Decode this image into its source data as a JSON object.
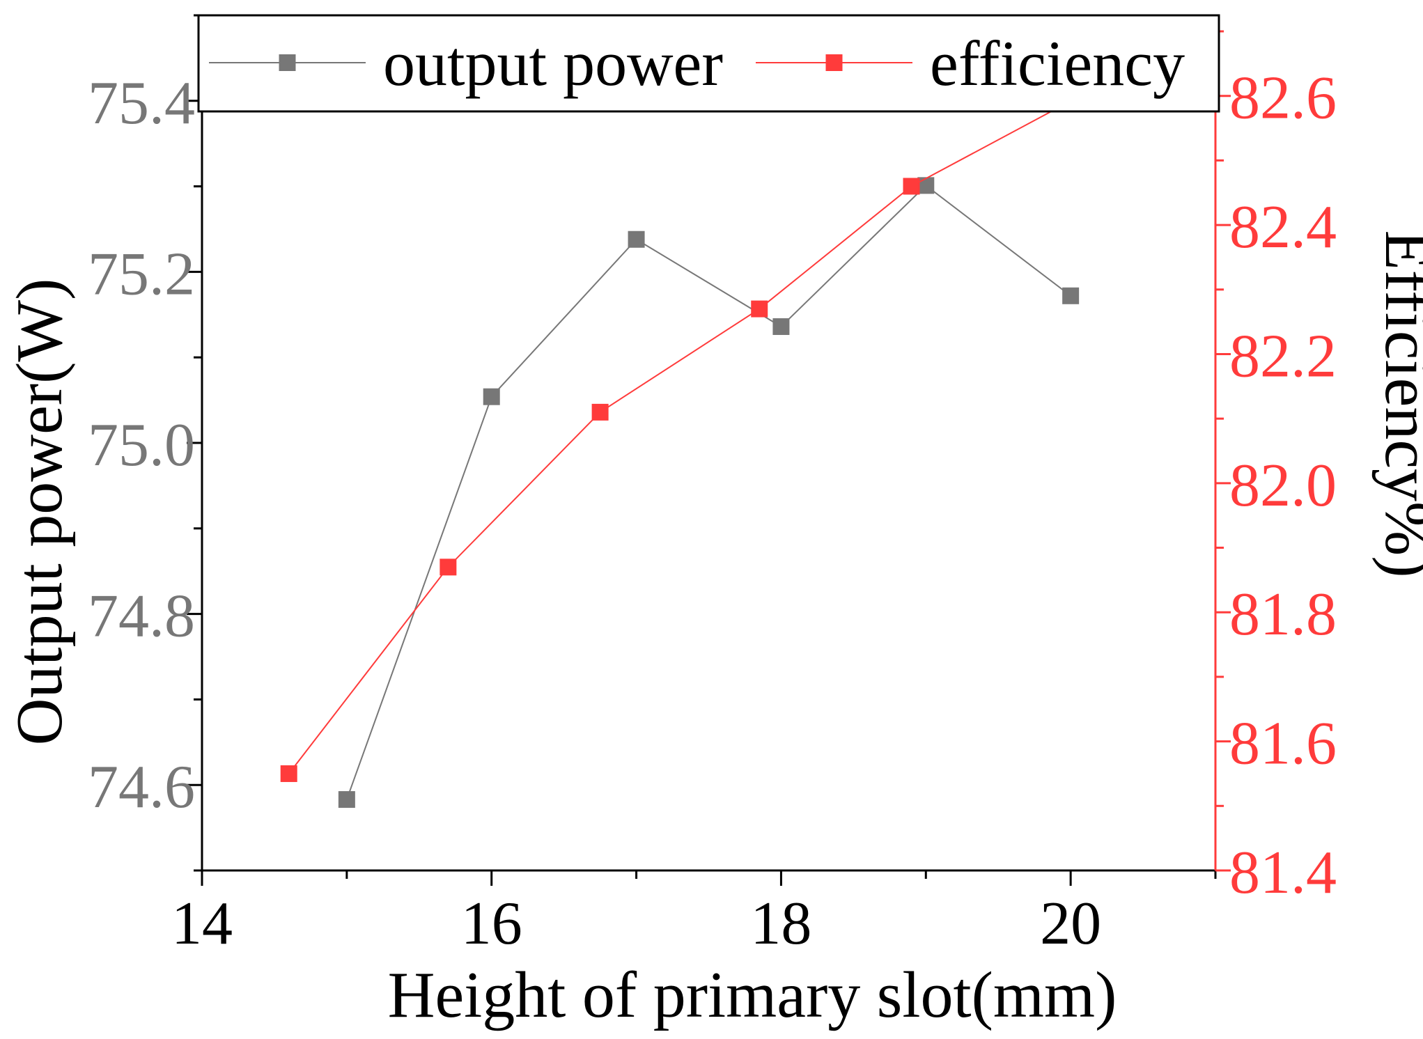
{
  "chart_data": {
    "type": "line",
    "xlabel": "Height of primary slot(mm)",
    "ylabel_left": "Output power(W)",
    "ylabel_right": "Efficiency%)",
    "xlim": [
      14,
      21
    ],
    "xticks": [
      14,
      16,
      18,
      20
    ],
    "xtick_labels": [
      "14",
      "16",
      "18",
      "20"
    ],
    "ylim_left": [
      74.5,
      75.5
    ],
    "yticks_left": [
      74.6,
      74.8,
      75.0,
      75.2,
      75.4
    ],
    "ytick_labels_left": [
      "74.6",
      "74.8",
      "75.0",
      "75.2",
      "75.4"
    ],
    "ylim_right": [
      81.4,
      82.7
    ],
    "yticks_right": [
      81.4,
      81.6,
      81.8,
      82.0,
      82.2,
      82.4,
      82.6
    ],
    "ytick_labels_right": [
      "81.4",
      "81.6",
      "81.8",
      "82.0",
      "82.2",
      "82.4",
      "82.6"
    ],
    "series": [
      {
        "name": "output power",
        "axis": "left",
        "color": "#777777",
        "x": [
          15,
          16,
          17,
          18,
          19,
          20
        ],
        "values": [
          74.583,
          75.054,
          75.238,
          75.136,
          75.301,
          75.172
        ]
      },
      {
        "name": "efficiency",
        "axis": "right",
        "color": "#ff3b3b",
        "x": [
          14.6,
          15.7,
          16.75,
          17.85,
          18.9,
          20.9
        ],
        "values": [
          81.55,
          81.87,
          82.11,
          82.27,
          82.46,
          82.7
        ]
      }
    ],
    "legend": {
      "position": "top",
      "entries": [
        "output power",
        "efficiency"
      ]
    }
  },
  "colors": {
    "left_axis_text": "#777777",
    "right_axis": "#ff3b3b",
    "frame": "#000000"
  }
}
